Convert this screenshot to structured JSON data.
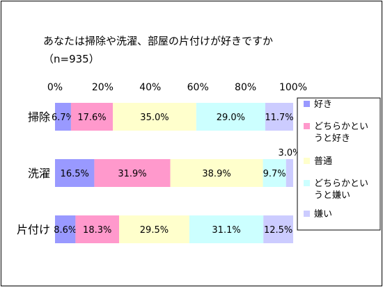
{
  "chart_data": {
    "type": "bar",
    "orientation": "horizontal",
    "stacked": "percent",
    "title": "あなたは掃除や洗濯、部屋の片付けが好きですか",
    "subtitle": "（n=935）",
    "xlim": [
      0,
      100
    ],
    "x_ticks": [
      "0%",
      "20%",
      "40%",
      "60%",
      "80%",
      "100%"
    ],
    "categories": [
      "掃除",
      "洗濯",
      "片付け"
    ],
    "series": [
      {
        "name": "好き",
        "color": "#9999ff",
        "values": [
          6.7,
          16.5,
          8.6
        ],
        "labels": [
          "6.7%",
          "16.5%",
          "8.6%"
        ]
      },
      {
        "name": "どちらかというと好き",
        "name_lines": [
          "どちらかとい",
          "うと好き"
        ],
        "color": "#ff99cc",
        "values": [
          17.6,
          31.9,
          18.3
        ],
        "labels": [
          "17.6%",
          "31.9%",
          "18.3%"
        ]
      },
      {
        "name": "普通",
        "color": "#ffffcc",
        "values": [
          35.0,
          38.9,
          29.5
        ],
        "labels": [
          "35.0%",
          "38.9%",
          "29.5%"
        ]
      },
      {
        "name": "どちらかというと嫌い",
        "name_lines": [
          "どちらかとい",
          "うと嫌い"
        ],
        "color": "#ccffff",
        "values": [
          29.0,
          9.7,
          31.1
        ],
        "labels": [
          "29.0%",
          "9.7%",
          "31.1%"
        ]
      },
      {
        "name": "嫌い",
        "color": "#ccccff",
        "values": [
          11.7,
          3.0,
          12.5
        ],
        "labels": [
          "11.7%",
          "3.0%",
          "12.5%"
        ]
      }
    ],
    "gridlines": false,
    "legend_position": "right"
  }
}
